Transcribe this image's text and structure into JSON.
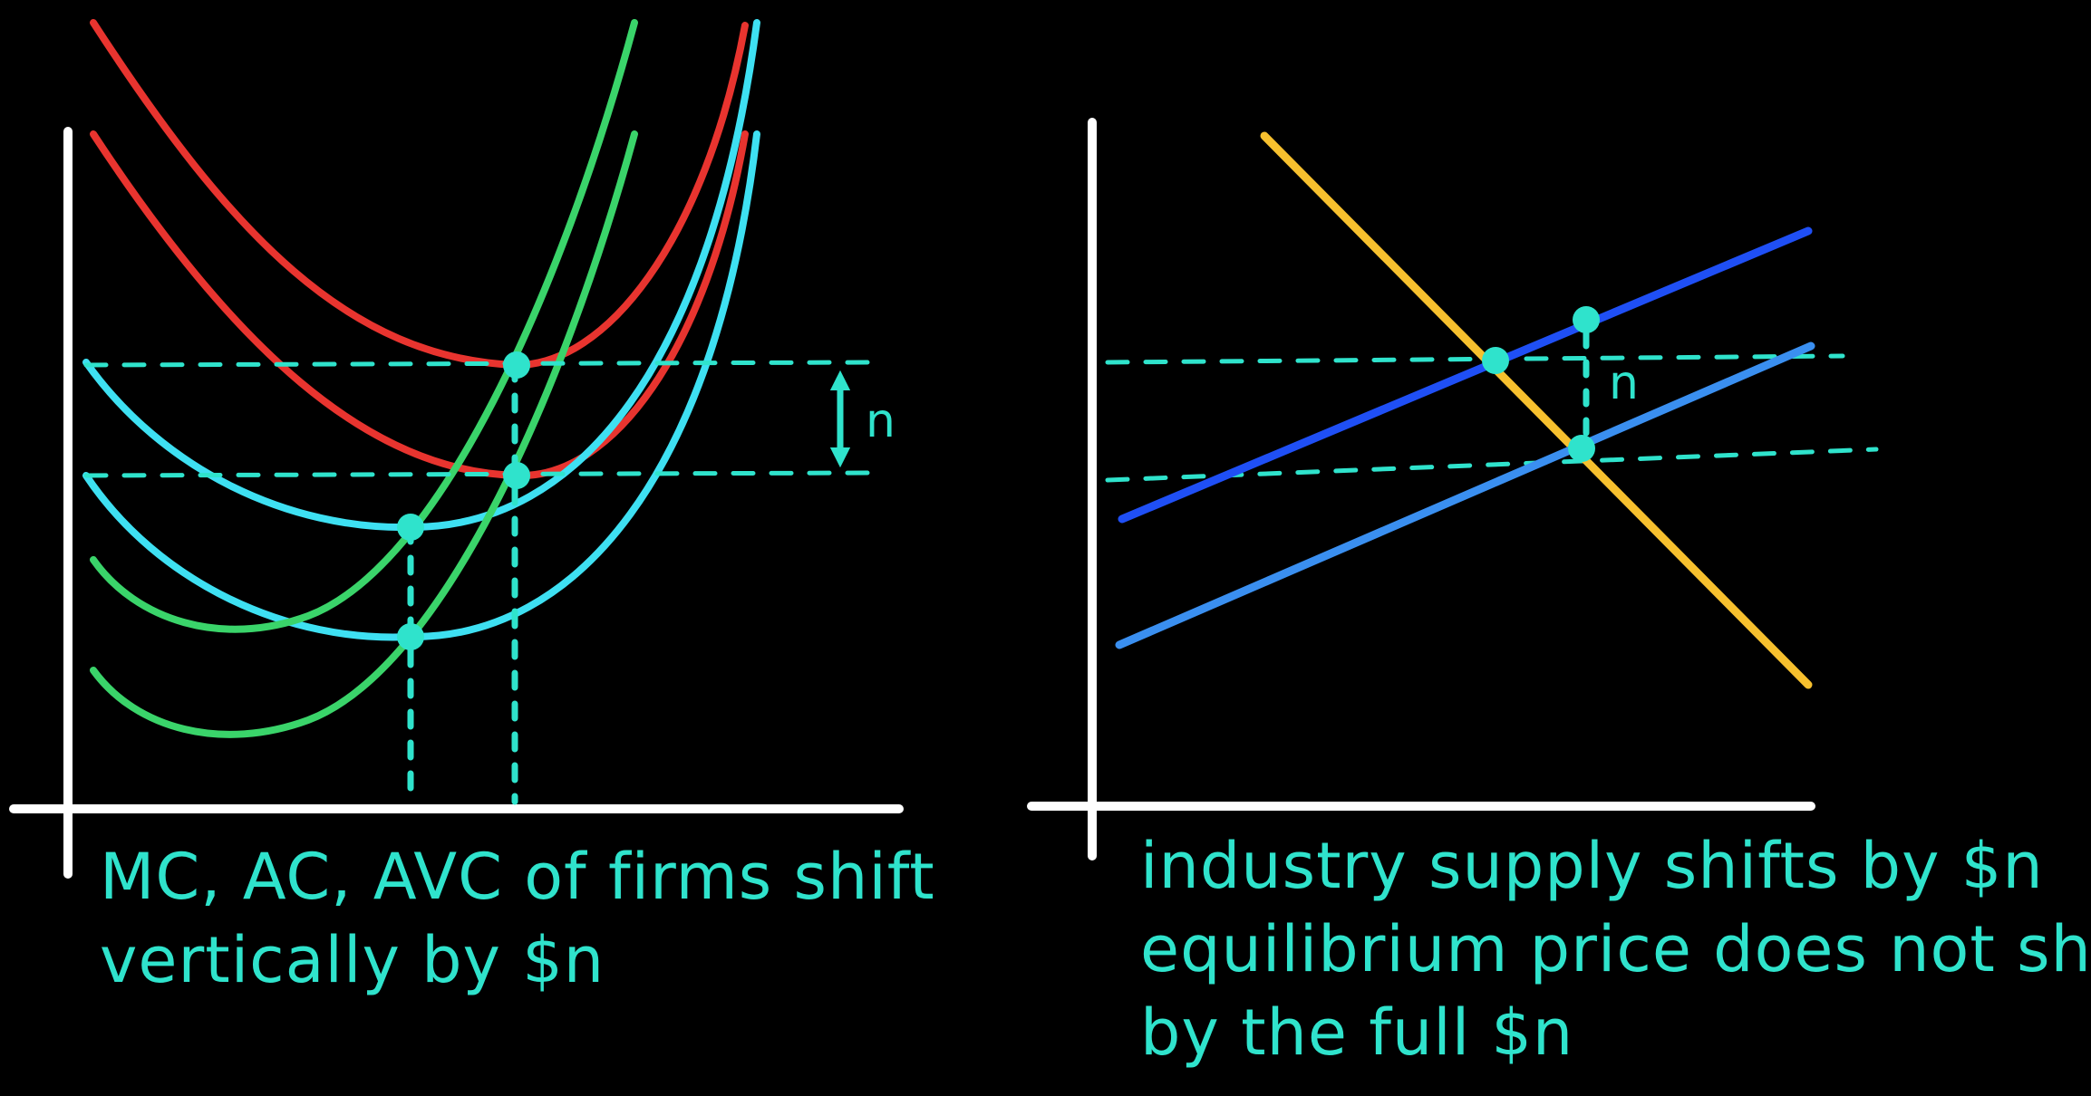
{
  "colors": {
    "background": "#000000",
    "axes": "#ffffff",
    "ac_curves": "#e8342f",
    "avc_curves": "#3ee0f2",
    "mc_curves": "#3ad46a",
    "annotation": "#2fe3cc",
    "supply_original": "#3a8ff0",
    "supply_shifted": "#1f4ff5",
    "demand": "#f7c02e"
  },
  "left_panel": {
    "shift_label": "n",
    "caption_lines": [
      "MC, AC, AVC of firms shift",
      "vertically by $n"
    ]
  },
  "right_panel": {
    "shift_label": "n",
    "caption_lines": [
      "industry supply shifts by $n",
      "equilibrium price does not shift",
      "by the full $n"
    ]
  }
}
